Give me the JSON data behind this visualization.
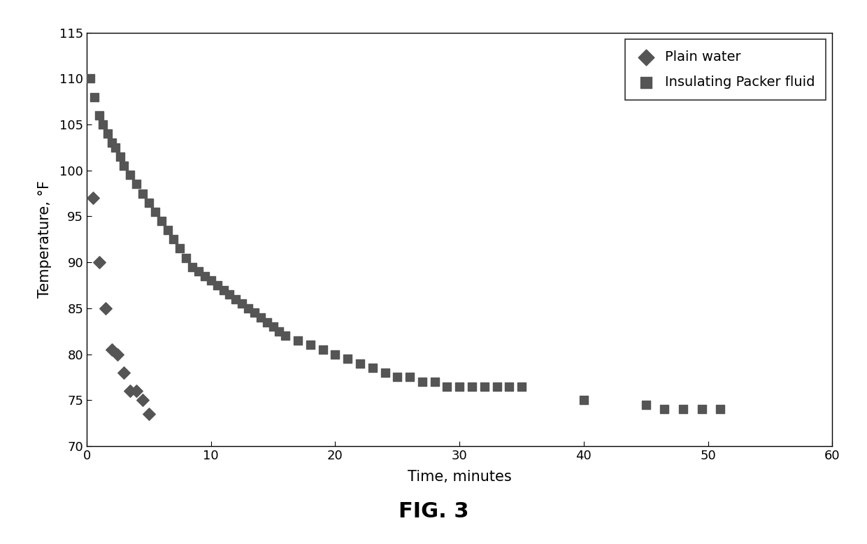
{
  "title": "FIG. 3",
  "xlabel": "Time, minutes",
  "ylabel": "Temperature, °F",
  "xlim": [
    0,
    60
  ],
  "ylim": [
    70,
    115
  ],
  "xticks": [
    0,
    10,
    20,
    30,
    40,
    50,
    60
  ],
  "yticks": [
    70,
    75,
    80,
    85,
    90,
    95,
    100,
    105,
    110,
    115
  ],
  "plain_water_x": [
    0.5,
    1.0,
    1.5,
    2.0,
    2.5,
    3.0,
    3.5,
    4.0,
    4.5,
    5.0
  ],
  "plain_water_y": [
    97,
    90,
    85,
    80.5,
    80,
    78,
    76,
    76,
    75,
    73.5
  ],
  "packer_fluid_x": [
    0.3,
    0.6,
    1.0,
    1.3,
    1.7,
    2.0,
    2.3,
    2.7,
    3.0,
    3.5,
    4.0,
    4.5,
    5.0,
    5.5,
    6.0,
    6.5,
    7.0,
    7.5,
    8.0,
    8.5,
    9.0,
    9.5,
    10.0,
    10.5,
    11.0,
    11.5,
    12.0,
    12.5,
    13.0,
    13.5,
    14.0,
    14.5,
    15.0,
    15.5,
    16.0,
    17.0,
    18.0,
    19.0,
    20.0,
    21.0,
    22.0,
    23.0,
    24.0,
    25.0,
    26.0,
    27.0,
    28.0,
    29.0,
    30.0,
    31.0,
    32.0,
    33.0,
    34.0,
    35.0,
    40.0,
    45.0,
    46.5,
    48.0,
    49.5,
    51.0
  ],
  "packer_fluid_y": [
    110.0,
    108.0,
    106.0,
    105.0,
    104.0,
    103.0,
    102.5,
    101.5,
    100.5,
    99.5,
    98.5,
    97.5,
    96.5,
    95.5,
    94.5,
    93.5,
    92.5,
    91.5,
    90.5,
    89.5,
    89.0,
    88.5,
    88.0,
    87.5,
    87.0,
    86.5,
    86.0,
    85.5,
    85.0,
    84.5,
    84.0,
    83.5,
    83.0,
    82.5,
    82.0,
    81.5,
    81.0,
    80.5,
    80.0,
    79.5,
    79.0,
    78.5,
    78.0,
    77.5,
    77.5,
    77.0,
    77.0,
    76.5,
    76.5,
    76.5,
    76.5,
    76.5,
    76.5,
    76.5,
    75.0,
    74.5,
    74.0,
    74.0,
    74.0,
    74.0
  ],
  "marker_color": "#555555",
  "background_color": "#ffffff",
  "label_plain_water": "Plain water",
  "label_packer": "Insulating Packer fluid",
  "title_fontsize": 22,
  "axis_label_fontsize": 15,
  "tick_fontsize": 13,
  "legend_fontsize": 14
}
